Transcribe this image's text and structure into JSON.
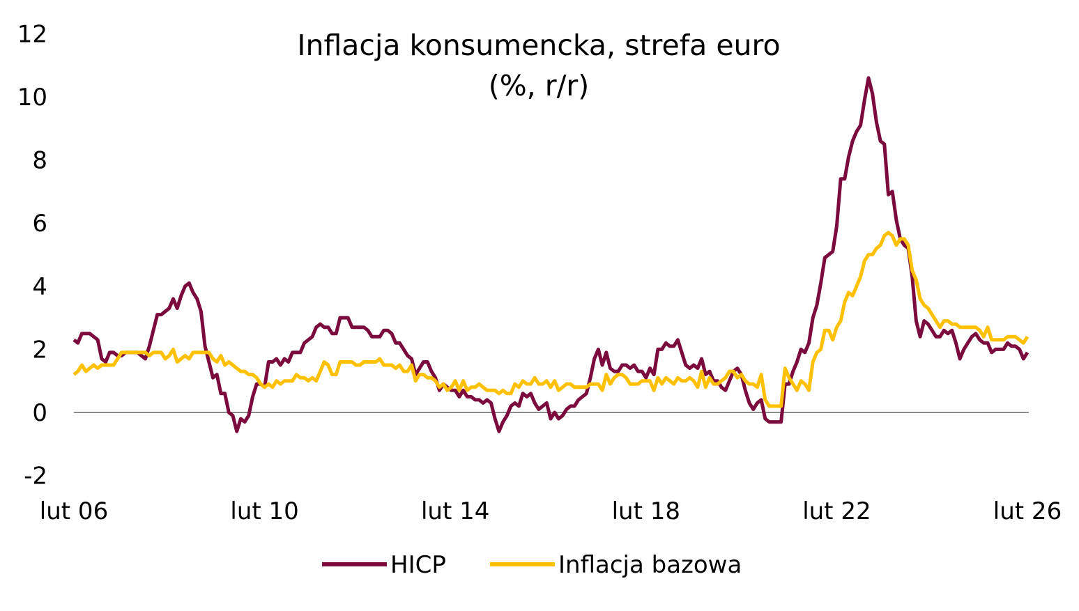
{
  "chart_data": {
    "type": "line",
    "title": "Inflacja konsumencka, strefa euro",
    "subtitle": "(%, r/r)",
    "xlabel": "",
    "ylabel": "",
    "ylim": [
      -2,
      12
    ],
    "yticks": [
      "-2",
      "0",
      "2",
      "4",
      "6",
      "8",
      "10",
      "12"
    ],
    "xticks": [
      "lut 06",
      "lut 10",
      "lut 14",
      "lut 18",
      "lut 22",
      "lut 26"
    ],
    "x_start": "2006-02",
    "x_end": "2026-02",
    "frequency": "monthly",
    "grid": false,
    "legend": "bottom",
    "series": [
      {
        "name": "HICP",
        "color": "#7b0a3d",
        "values": [
          2.3,
          2.2,
          2.5,
          2.5,
          2.5,
          2.4,
          2.3,
          1.7,
          1.6,
          1.9,
          1.9,
          1.8,
          1.8,
          1.9,
          1.9,
          1.9,
          1.9,
          1.8,
          1.7,
          2.1,
          2.6,
          3.1,
          3.1,
          3.2,
          3.3,
          3.6,
          3.3,
          3.7,
          4.0,
          4.1,
          3.8,
          3.6,
          3.2,
          2.1,
          1.6,
          1.1,
          1.2,
          0.6,
          0.6,
          0.0,
          -0.1,
          -0.6,
          -0.2,
          -0.3,
          -0.1,
          0.5,
          0.9,
          0.9,
          0.8,
          1.6,
          1.6,
          1.7,
          1.5,
          1.7,
          1.6,
          1.9,
          1.9,
          1.9,
          2.2,
          2.3,
          2.4,
          2.7,
          2.8,
          2.7,
          2.7,
          2.5,
          2.5,
          3.0,
          3.0,
          3.0,
          2.7,
          2.7,
          2.7,
          2.7,
          2.6,
          2.4,
          2.4,
          2.4,
          2.6,
          2.6,
          2.5,
          2.2,
          2.2,
          2.0,
          1.8,
          1.7,
          1.2,
          1.4,
          1.6,
          1.6,
          1.3,
          1.1,
          0.7,
          0.9,
          0.8,
          0.7,
          0.7,
          0.5,
          0.7,
          0.5,
          0.5,
          0.4,
          0.4,
          0.3,
          0.4,
          0.3,
          -0.2,
          -0.6,
          -0.3,
          -0.1,
          0.2,
          0.3,
          0.2,
          0.6,
          0.5,
          0.6,
          0.3,
          0.1,
          0.2,
          0.3,
          -0.2,
          0.0,
          -0.2,
          -0.1,
          0.1,
          0.2,
          0.2,
          0.4,
          0.5,
          0.6,
          1.1,
          1.7,
          2.0,
          1.5,
          1.9,
          1.4,
          1.3,
          1.3,
          1.5,
          1.5,
          1.4,
          1.5,
          1.3,
          1.3,
          1.1,
          1.4,
          1.2,
          2.0,
          2.0,
          2.2,
          2.1,
          2.1,
          2.3,
          1.9,
          1.5,
          1.4,
          1.5,
          1.4,
          1.7,
          1.2,
          1.3,
          1.0,
          1.0,
          0.8,
          0.7,
          1.0,
          1.3,
          1.4,
          1.2,
          0.7,
          0.3,
          0.1,
          0.3,
          0.4,
          -0.2,
          -0.3,
          -0.3,
          -0.3,
          -0.3,
          0.9,
          0.9,
          1.3,
          1.6,
          2.0,
          1.9,
          2.2,
          3.0,
          3.4,
          4.1,
          4.9,
          5.0,
          5.1,
          5.9,
          7.4,
          7.4,
          8.1,
          8.6,
          8.9,
          9.1,
          9.9,
          10.6,
          10.1,
          9.2,
          8.6,
          8.5,
          6.9,
          7.0,
          6.1,
          5.5,
          5.3,
          5.2,
          4.3,
          2.9,
          2.4,
          2.9,
          2.8,
          2.6,
          2.4,
          2.4,
          2.6,
          2.5,
          2.6,
          2.2,
          1.7,
          2.0,
          2.2,
          2.4,
          2.5,
          2.3,
          2.2,
          2.2,
          1.9,
          2.0,
          2.0,
          2.0,
          2.2,
          2.1,
          2.1,
          2.0,
          1.7,
          1.9
        ]
      },
      {
        "name": "Inflacja bazowa",
        "color": "#ffc000",
        "values": [
          1.2,
          1.3,
          1.5,
          1.3,
          1.4,
          1.5,
          1.4,
          1.5,
          1.5,
          1.5,
          1.5,
          1.7,
          1.9,
          1.9,
          1.9,
          1.9,
          1.9,
          1.9,
          1.9,
          1.8,
          1.9,
          1.9,
          1.9,
          1.7,
          1.8,
          2.0,
          1.6,
          1.7,
          1.8,
          1.7,
          1.9,
          1.9,
          1.9,
          1.9,
          1.9,
          1.7,
          1.6,
          1.8,
          1.5,
          1.6,
          1.5,
          1.4,
          1.3,
          1.3,
          1.2,
          1.2,
          1.1,
          0.9,
          0.8,
          0.9,
          0.8,
          1.0,
          0.9,
          1.0,
          1.0,
          1.0,
          1.2,
          1.1,
          1.1,
          1.0,
          1.1,
          1.0,
          1.3,
          1.6,
          1.5,
          1.2,
          1.2,
          1.6,
          1.6,
          1.6,
          1.6,
          1.5,
          1.5,
          1.6,
          1.6,
          1.6,
          1.6,
          1.7,
          1.5,
          1.5,
          1.5,
          1.4,
          1.5,
          1.3,
          1.3,
          1.5,
          1.0,
          1.2,
          1.2,
          1.1,
          1.1,
          1.0,
          0.8,
          0.9,
          0.7,
          0.8,
          1.0,
          0.7,
          1.0,
          0.7,
          0.8,
          0.8,
          0.9,
          0.8,
          0.7,
          0.7,
          0.7,
          0.6,
          0.7,
          0.6,
          0.6,
          0.9,
          0.8,
          1.0,
          0.9,
          0.9,
          1.1,
          0.9,
          0.9,
          1.0,
          0.8,
          1.0,
          0.7,
          0.8,
          0.9,
          0.9,
          0.8,
          0.8,
          0.8,
          0.8,
          0.9,
          0.9,
          0.9,
          0.7,
          1.2,
          0.9,
          1.1,
          1.2,
          1.2,
          1.1,
          0.9,
          0.9,
          0.9,
          1.0,
          1.0,
          1.0,
          0.7,
          1.1,
          0.9,
          1.1,
          1.0,
          0.9,
          1.1,
          1.0,
          1.0,
          1.1,
          1.0,
          0.8,
          1.3,
          0.8,
          1.1,
          0.9,
          0.9,
          1.0,
          1.1,
          1.3,
          1.3,
          1.1,
          1.2,
          1.0,
          0.9,
          0.9,
          0.8,
          1.2,
          0.4,
          0.2,
          0.2,
          0.2,
          0.2,
          1.4,
          1.1,
          0.9,
          0.7,
          1.0,
          0.9,
          0.7,
          1.6,
          1.9,
          2.0,
          2.6,
          2.6,
          2.3,
          2.7,
          2.9,
          3.5,
          3.8,
          3.7,
          4.0,
          4.3,
          4.8,
          5.0,
          5.0,
          5.2,
          5.3,
          5.6,
          5.7,
          5.6,
          5.3,
          5.5,
          5.5,
          5.3,
          4.5,
          4.2,
          3.6,
          3.4,
          3.3,
          3.1,
          2.9,
          2.7,
          2.9,
          2.9,
          2.8,
          2.8,
          2.7,
          2.7,
          2.7,
          2.7,
          2.7,
          2.6,
          2.4,
          2.7,
          2.3,
          2.3,
          2.3,
          2.3,
          2.4,
          2.4,
          2.4,
          2.3,
          2.2,
          2.4
        ]
      }
    ],
    "zero_line_color": "#8c8c8c"
  }
}
